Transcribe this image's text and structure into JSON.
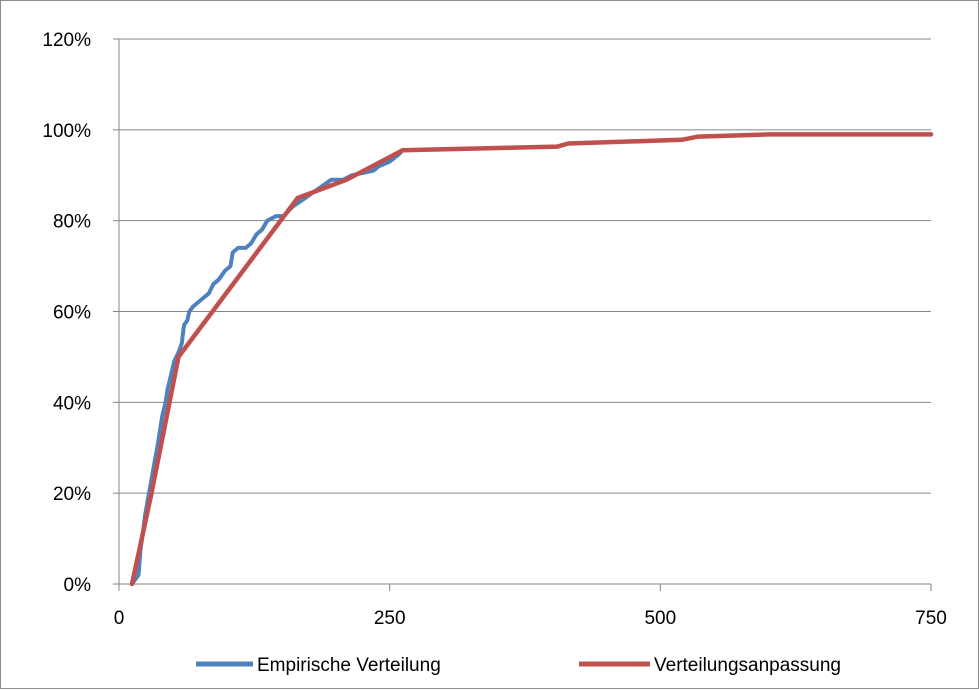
{
  "chart_data": {
    "type": "line",
    "title": "",
    "xlabel": "",
    "ylabel": "",
    "xlim": [
      0,
      750
    ],
    "ylim": [
      0,
      1.2
    ],
    "x_ticks": [
      0,
      250,
      500,
      750
    ],
    "x_tick_labels": [
      "0",
      "250",
      "500",
      "750"
    ],
    "y_ticks": [
      0,
      0.2,
      0.4,
      0.6,
      0.8,
      1.0,
      1.2
    ],
    "y_tick_labels": [
      "0%",
      "20%",
      "40%",
      "60%",
      "80%",
      "100%",
      "120%"
    ],
    "grid": "horizontal",
    "legend_position": "bottom",
    "series": [
      {
        "name": "Empirische Verteilung",
        "color": "#4f81bd",
        "points": [
          [
            12,
            0.0
          ],
          [
            18,
            0.02
          ],
          [
            20,
            0.08
          ],
          [
            22,
            0.11
          ],
          [
            24,
            0.15
          ],
          [
            27,
            0.19
          ],
          [
            30,
            0.23
          ],
          [
            33,
            0.27
          ],
          [
            36,
            0.31
          ],
          [
            38,
            0.34
          ],
          [
            40,
            0.37
          ],
          [
            43,
            0.4
          ],
          [
            45,
            0.43
          ],
          [
            48,
            0.46
          ],
          [
            51,
            0.49
          ],
          [
            55,
            0.51
          ],
          [
            58,
            0.53
          ],
          [
            60,
            0.57
          ],
          [
            63,
            0.58
          ],
          [
            65,
            0.6
          ],
          [
            68,
            0.61
          ],
          [
            73,
            0.62
          ],
          [
            78,
            0.63
          ],
          [
            83,
            0.64
          ],
          [
            87,
            0.66
          ],
          [
            92,
            0.67
          ],
          [
            98,
            0.69
          ],
          [
            103,
            0.7
          ],
          [
            105,
            0.73
          ],
          [
            110,
            0.74
          ],
          [
            117,
            0.74
          ],
          [
            122,
            0.75
          ],
          [
            127,
            0.77
          ],
          [
            132,
            0.78
          ],
          [
            137,
            0.8
          ],
          [
            145,
            0.81
          ],
          [
            152,
            0.81
          ],
          [
            160,
            0.83
          ],
          [
            166,
            0.84
          ],
          [
            172,
            0.85
          ],
          [
            178,
            0.86
          ],
          [
            184,
            0.87
          ],
          [
            190,
            0.88
          ],
          [
            196,
            0.89
          ],
          [
            207,
            0.89
          ],
          [
            215,
            0.9
          ],
          [
            235,
            0.91
          ],
          [
            240,
            0.92
          ],
          [
            250,
            0.93
          ],
          [
            258,
            0.945
          ],
          [
            262,
            0.955
          ]
        ]
      },
      {
        "name": "Verteilungsanpassung",
        "color": "#c0504d",
        "points": [
          [
            12,
            0.0
          ],
          [
            30,
            0.2
          ],
          [
            55,
            0.5
          ],
          [
            165,
            0.85
          ],
          [
            210,
            0.89
          ],
          [
            262,
            0.955
          ],
          [
            405,
            0.963
          ],
          [
            415,
            0.97
          ],
          [
            520,
            0.978
          ],
          [
            535,
            0.985
          ],
          [
            600,
            0.99
          ],
          [
            750,
            0.99
          ]
        ]
      }
    ]
  }
}
